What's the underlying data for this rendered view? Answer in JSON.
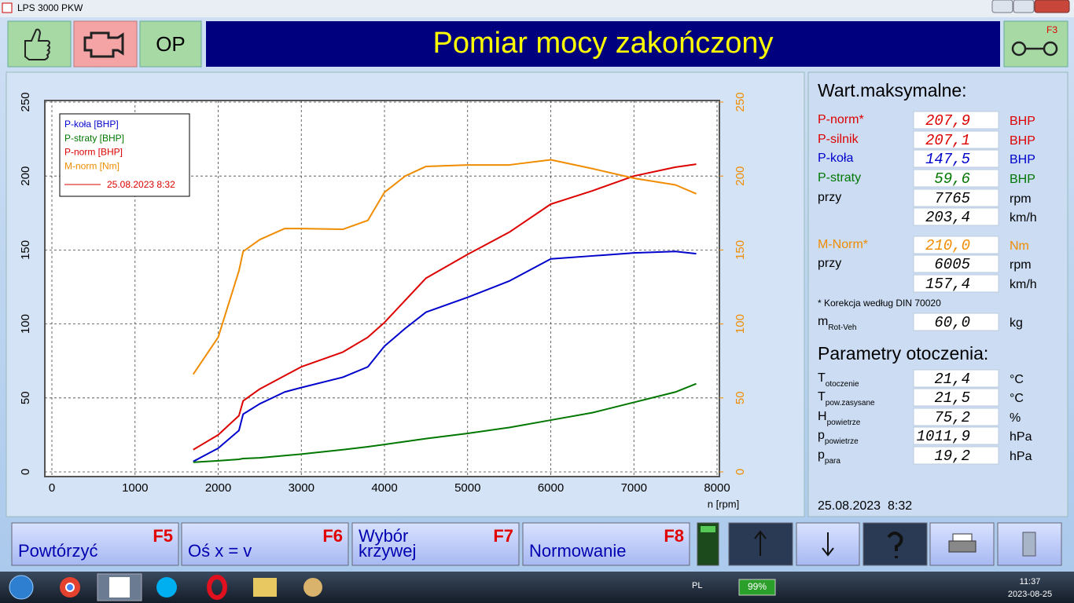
{
  "window": {
    "title": "LPS 3000 PKW"
  },
  "header": {
    "op_button": "OP",
    "title": "Pomiar mocy zakończony",
    "f3_key": "F3"
  },
  "chart_data": {
    "type": "line",
    "x_label": "n [rpm]",
    "x": [
      1700,
      2000,
      2250,
      2300,
      2500,
      2800,
      3000,
      3500,
      3800,
      4000,
      4250,
      4500,
      5000,
      5500,
      6000,
      6500,
      7000,
      7500,
      7750
    ],
    "series": [
      {
        "name": "P-koła [BHP]",
        "color": "#0000cc",
        "values": [
          7,
          16,
          28,
          39,
          46,
          54,
          57,
          64,
          71,
          85,
          97,
          108,
          118,
          129,
          144,
          146,
          148,
          149,
          147.5
        ]
      },
      {
        "name": "P-straty [BHP]",
        "color": "#007700",
        "values": [
          6.5,
          7.5,
          8.5,
          9,
          9.5,
          11,
          12,
          15,
          17,
          18.5,
          20.5,
          22.5,
          26,
          30,
          35,
          40,
          47,
          54,
          59.6
        ]
      },
      {
        "name": "P-norm [BHP]",
        "color": "#dd0000",
        "values": [
          15,
          25,
          38,
          48,
          56,
          65,
          71,
          81,
          91,
          101,
          116,
          131,
          147,
          162,
          181,
          190,
          200,
          206,
          208
        ]
      },
      {
        "name": "M-norm [Nm]",
        "color": "#f08c00",
        "axis": "y2",
        "values": [
          66,
          91,
          136,
          149,
          157,
          164.5,
          164.5,
          164,
          170,
          189,
          200,
          206.5,
          207.5,
          207.5,
          211,
          205,
          198.5,
          194,
          188
        ]
      }
    ],
    "legend_date": "25.08.2023 8:32",
    "legend_date_color": "#dd0000",
    "xlim": [
      0,
      8000
    ],
    "xticks": [
      0,
      1000,
      2000,
      3000,
      4000,
      5000,
      6000,
      7000,
      8000
    ],
    "ylim": [
      0,
      250
    ],
    "yticks": [
      0,
      50,
      100,
      150,
      200,
      250
    ],
    "y2lim": [
      0,
      250
    ],
    "y2ticks": [
      0,
      50,
      100,
      150,
      200,
      250
    ],
    "y2_color": "#f08c00",
    "grid": true
  },
  "side_panel": {
    "max_title": "Wart.maksymalne:",
    "max_rows": [
      {
        "label": "P-norm*",
        "value": "207,9",
        "unit": "BHP",
        "color": "#dd0000"
      },
      {
        "label": "P-silnik",
        "value": "207,1",
        "unit": "BHP",
        "color": "#dd0000"
      },
      {
        "label": "P-koła",
        "value": "147,5",
        "unit": "BHP",
        "color": "#0000cc"
      },
      {
        "label": "P-straty",
        "value": "59,6",
        "unit": "BHP",
        "color": "#007700"
      },
      {
        "label": "przy",
        "value": "7765",
        "unit": "rpm",
        "color": "#000000"
      },
      {
        "value": "203,4",
        "unit": "km/h",
        "color": "#000000"
      }
    ],
    "torque_rows": [
      {
        "label": "M-Norm*",
        "value": "210,0",
        "unit": "Nm",
        "color": "#f08c00"
      },
      {
        "label": "przy",
        "value": "6005",
        "unit": "rpm",
        "color": "#000000"
      },
      {
        "value": "157,4",
        "unit": "km/h",
        "color": "#000000"
      }
    ],
    "note": "* Korekcja według DIN 70020",
    "mass_row": {
      "label": "m",
      "sub": "Rot-Veh",
      "value": "60,0",
      "unit": "kg"
    },
    "ambient_title": "Parametry otoczenia:",
    "ambient_rows": [
      {
        "label": "T",
        "sub": "otoczenie",
        "value": "21,4",
        "unit": "°C"
      },
      {
        "label": "T",
        "sub": "pow.zasysane",
        "value": "21,5",
        "unit": "°C"
      },
      {
        "label": "H",
        "sub": "powietrze",
        "value": "75,2",
        "unit": "%"
      },
      {
        "label": "p",
        "sub": "powietrze",
        "value": "1011,9",
        "unit": "hPa"
      },
      {
        "label": "p",
        "sub": "para",
        "value": "19,2",
        "unit": "hPa"
      }
    ],
    "timestamp": "25.08.2023  8:32"
  },
  "function_keys": [
    {
      "lines": [
        "Powtórzyć"
      ],
      "key": "F5"
    },
    {
      "lines": [
        "Oś x = v"
      ],
      "key": "F6"
    },
    {
      "lines": [
        "Wybór",
        "krzywej"
      ],
      "key": "F7"
    },
    {
      "lines": [
        "Normowanie"
      ],
      "key": "F8"
    }
  ],
  "taskbar": {
    "language": "PL",
    "battery": "99%",
    "time": "11:37",
    "date": "2023-08-25"
  }
}
